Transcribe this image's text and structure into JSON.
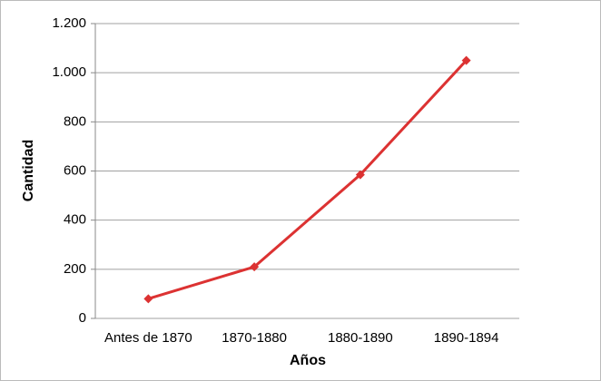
{
  "chart_data": {
    "type": "line",
    "x_label": "Años",
    "y_label": "Cantidad",
    "categories": [
      "Antes de 1870",
      "1870-1880",
      "1880-1890",
      "1890-1894"
    ],
    "values": [
      80,
      210,
      585,
      1050
    ],
    "color": "#dc3232",
    "ylim": [
      0,
      1200
    ],
    "yticks": [
      0,
      200,
      400,
      600,
      800,
      {
        "value": 1000,
        "label": "1.000"
      },
      {
        "value": 1200,
        "label": "1.200"
      }
    ],
    "grid": true
  }
}
